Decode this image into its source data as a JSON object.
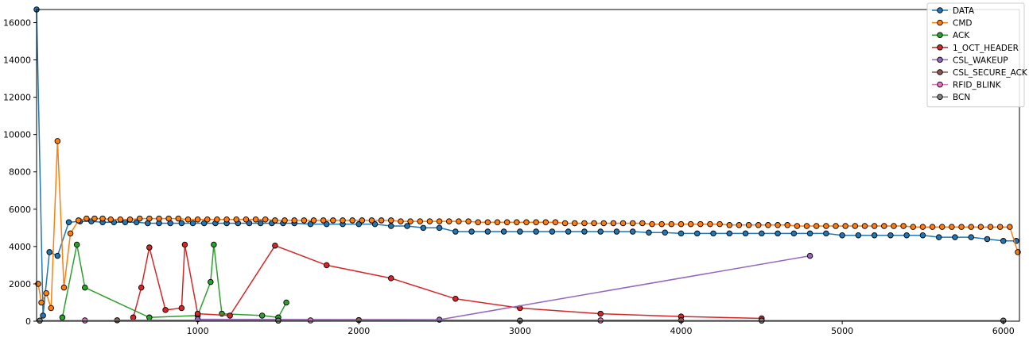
{
  "chart_data": {
    "type": "line",
    "title": "",
    "xlabel": "",
    "ylabel": "",
    "xlim": [
      0,
      6100
    ],
    "ylim": [
      0,
      16700
    ],
    "x_ticks": [
      1000,
      2000,
      3000,
      4000,
      5000,
      6000
    ],
    "y_ticks": [
      0,
      2000,
      4000,
      6000,
      8000,
      10000,
      12000,
      14000,
      16000
    ],
    "legend_position": "top-right",
    "grid": false,
    "series": [
      {
        "name": "DATA",
        "color": "#1f77b4",
        "x": [
          0,
          40,
          80,
          130,
          200,
          270,
          340,
          410,
          480,
          550,
          620,
          690,
          760,
          830,
          900,
          970,
          1040,
          1110,
          1180,
          1250,
          1320,
          1390,
          1460,
          1530,
          1600,
          1700,
          1800,
          1900,
          2000,
          2100,
          2200,
          2300,
          2400,
          2500,
          2600,
          2700,
          2800,
          2900,
          3000,
          3100,
          3200,
          3300,
          3400,
          3500,
          3600,
          3700,
          3800,
          3900,
          4000,
          4100,
          4200,
          4300,
          4400,
          4500,
          4600,
          4700,
          4800,
          4900,
          5000,
          5100,
          5200,
          5300,
          5400,
          5500,
          5600,
          5700,
          5800,
          5900,
          6000,
          6080
        ],
        "y": [
          16700,
          300,
          3700,
          3500,
          5300,
          5350,
          5350,
          5300,
          5300,
          5300,
          5300,
          5250,
          5250,
          5250,
          5250,
          5250,
          5250,
          5250,
          5250,
          5250,
          5250,
          5250,
          5250,
          5250,
          5250,
          5200,
          5200,
          5200,
          5200,
          5200,
          5100,
          5100,
          5000,
          5000,
          4800,
          4800,
          4800,
          4800,
          4800,
          4800,
          4800,
          4800,
          4800,
          4800,
          4800,
          4800,
          4750,
          4750,
          4700,
          4700,
          4700,
          4700,
          4700,
          4700,
          4700,
          4700,
          4700,
          4700,
          4600,
          4600,
          4600,
          4600,
          4600,
          4600,
          4500,
          4500,
          4500,
          4400,
          4300,
          4300
        ]
      },
      {
        "name": "CMD",
        "color": "#ff7f0e",
        "x": [
          10,
          30,
          60,
          90,
          130,
          170,
          210,
          260,
          310,
          360,
          410,
          460,
          520,
          580,
          640,
          700,
          760,
          820,
          880,
          940,
          1000,
          1060,
          1120,
          1180,
          1240,
          1300,
          1360,
          1420,
          1480,
          1540,
          1600,
          1660,
          1720,
          1780,
          1840,
          1900,
          1960,
          2020,
          2080,
          2140,
          2200,
          2260,
          2320,
          2380,
          2440,
          2500,
          2560,
          2620,
          2680,
          2740,
          2800,
          2860,
          2920,
          2980,
          3040,
          3100,
          3160,
          3220,
          3280,
          3340,
          3400,
          3460,
          3520,
          3580,
          3640,
          3700,
          3760,
          3820,
          3880,
          3940,
          4000,
          4060,
          4120,
          4180,
          4240,
          4300,
          4360,
          4420,
          4480,
          4540,
          4600,
          4660,
          4720,
          4780,
          4840,
          4900,
          4960,
          5020,
          5080,
          5140,
          5200,
          5260,
          5320,
          5380,
          5440,
          5500,
          5560,
          5620,
          5680,
          5740,
          5800,
          5860,
          5920,
          5980,
          6040,
          6090
        ],
        "y": [
          2000,
          1000,
          1500,
          700,
          9650,
          1800,
          4700,
          5400,
          5500,
          5500,
          5500,
          5450,
          5450,
          5450,
          5500,
          5500,
          5500,
          5500,
          5500,
          5450,
          5450,
          5450,
          5450,
          5450,
          5450,
          5450,
          5450,
          5450,
          5400,
          5400,
          5400,
          5400,
          5400,
          5400,
          5400,
          5400,
          5400,
          5400,
          5400,
          5400,
          5400,
          5350,
          5350,
          5350,
          5350,
          5350,
          5350,
          5350,
          5350,
          5300,
          5300,
          5300,
          5300,
          5300,
          5300,
          5300,
          5300,
          5300,
          5250,
          5250,
          5250,
          5250,
          5250,
          5250,
          5250,
          5250,
          5250,
          5200,
          5200,
          5200,
          5200,
          5200,
          5200,
          5200,
          5200,
          5150,
          5150,
          5150,
          5150,
          5150,
          5150,
          5150,
          5100,
          5100,
          5100,
          5100,
          5100,
          5100,
          5100,
          5100,
          5100,
          5100,
          5100,
          5100,
          5050,
          5050,
          5050,
          5050,
          5050,
          5050,
          5050,
          5050,
          5050,
          5050,
          5050,
          3700
        ]
      },
      {
        "name": "ACK",
        "color": "#2ca02c",
        "x": [
          160,
          250,
          300,
          700,
          1000,
          1080,
          1100,
          1150,
          1400,
          1500,
          1550
        ],
        "y": [
          200,
          4100,
          1800,
          200,
          300,
          2100,
          4100,
          400,
          300,
          200,
          1000
        ]
      },
      {
        "name": "1_OCT_HEADER",
        "color": "#d62728",
        "x": [
          600,
          650,
          700,
          800,
          900,
          920,
          1000,
          1200,
          1480,
          1800,
          2200,
          2600,
          3000,
          3500,
          4000,
          4500
        ],
        "y": [
          200,
          1800,
          3950,
          600,
          700,
          4100,
          400,
          300,
          4050,
          3000,
          2300,
          1200,
          700,
          400,
          250,
          150
        ]
      },
      {
        "name": "CSL_WAKEUP",
        "color": "#9467bd",
        "x": [
          1000,
          2500,
          4800
        ],
        "y": [
          100,
          80,
          3500
        ]
      },
      {
        "name": "CSL_SECURE_ACK",
        "color": "#8c564b",
        "x": [
          500,
          2000,
          4000
        ],
        "y": [
          50,
          60,
          50
        ]
      },
      {
        "name": "RFID_BLINK",
        "color": "#e377c2",
        "x": [
          300,
          1700,
          3500
        ],
        "y": [
          40,
          40,
          40
        ]
      },
      {
        "name": "BCN",
        "color": "#7f7f7f",
        "x": [
          20,
          1500,
          3000,
          4500,
          6000
        ],
        "y": [
          30,
          30,
          30,
          30,
          30
        ]
      }
    ]
  }
}
